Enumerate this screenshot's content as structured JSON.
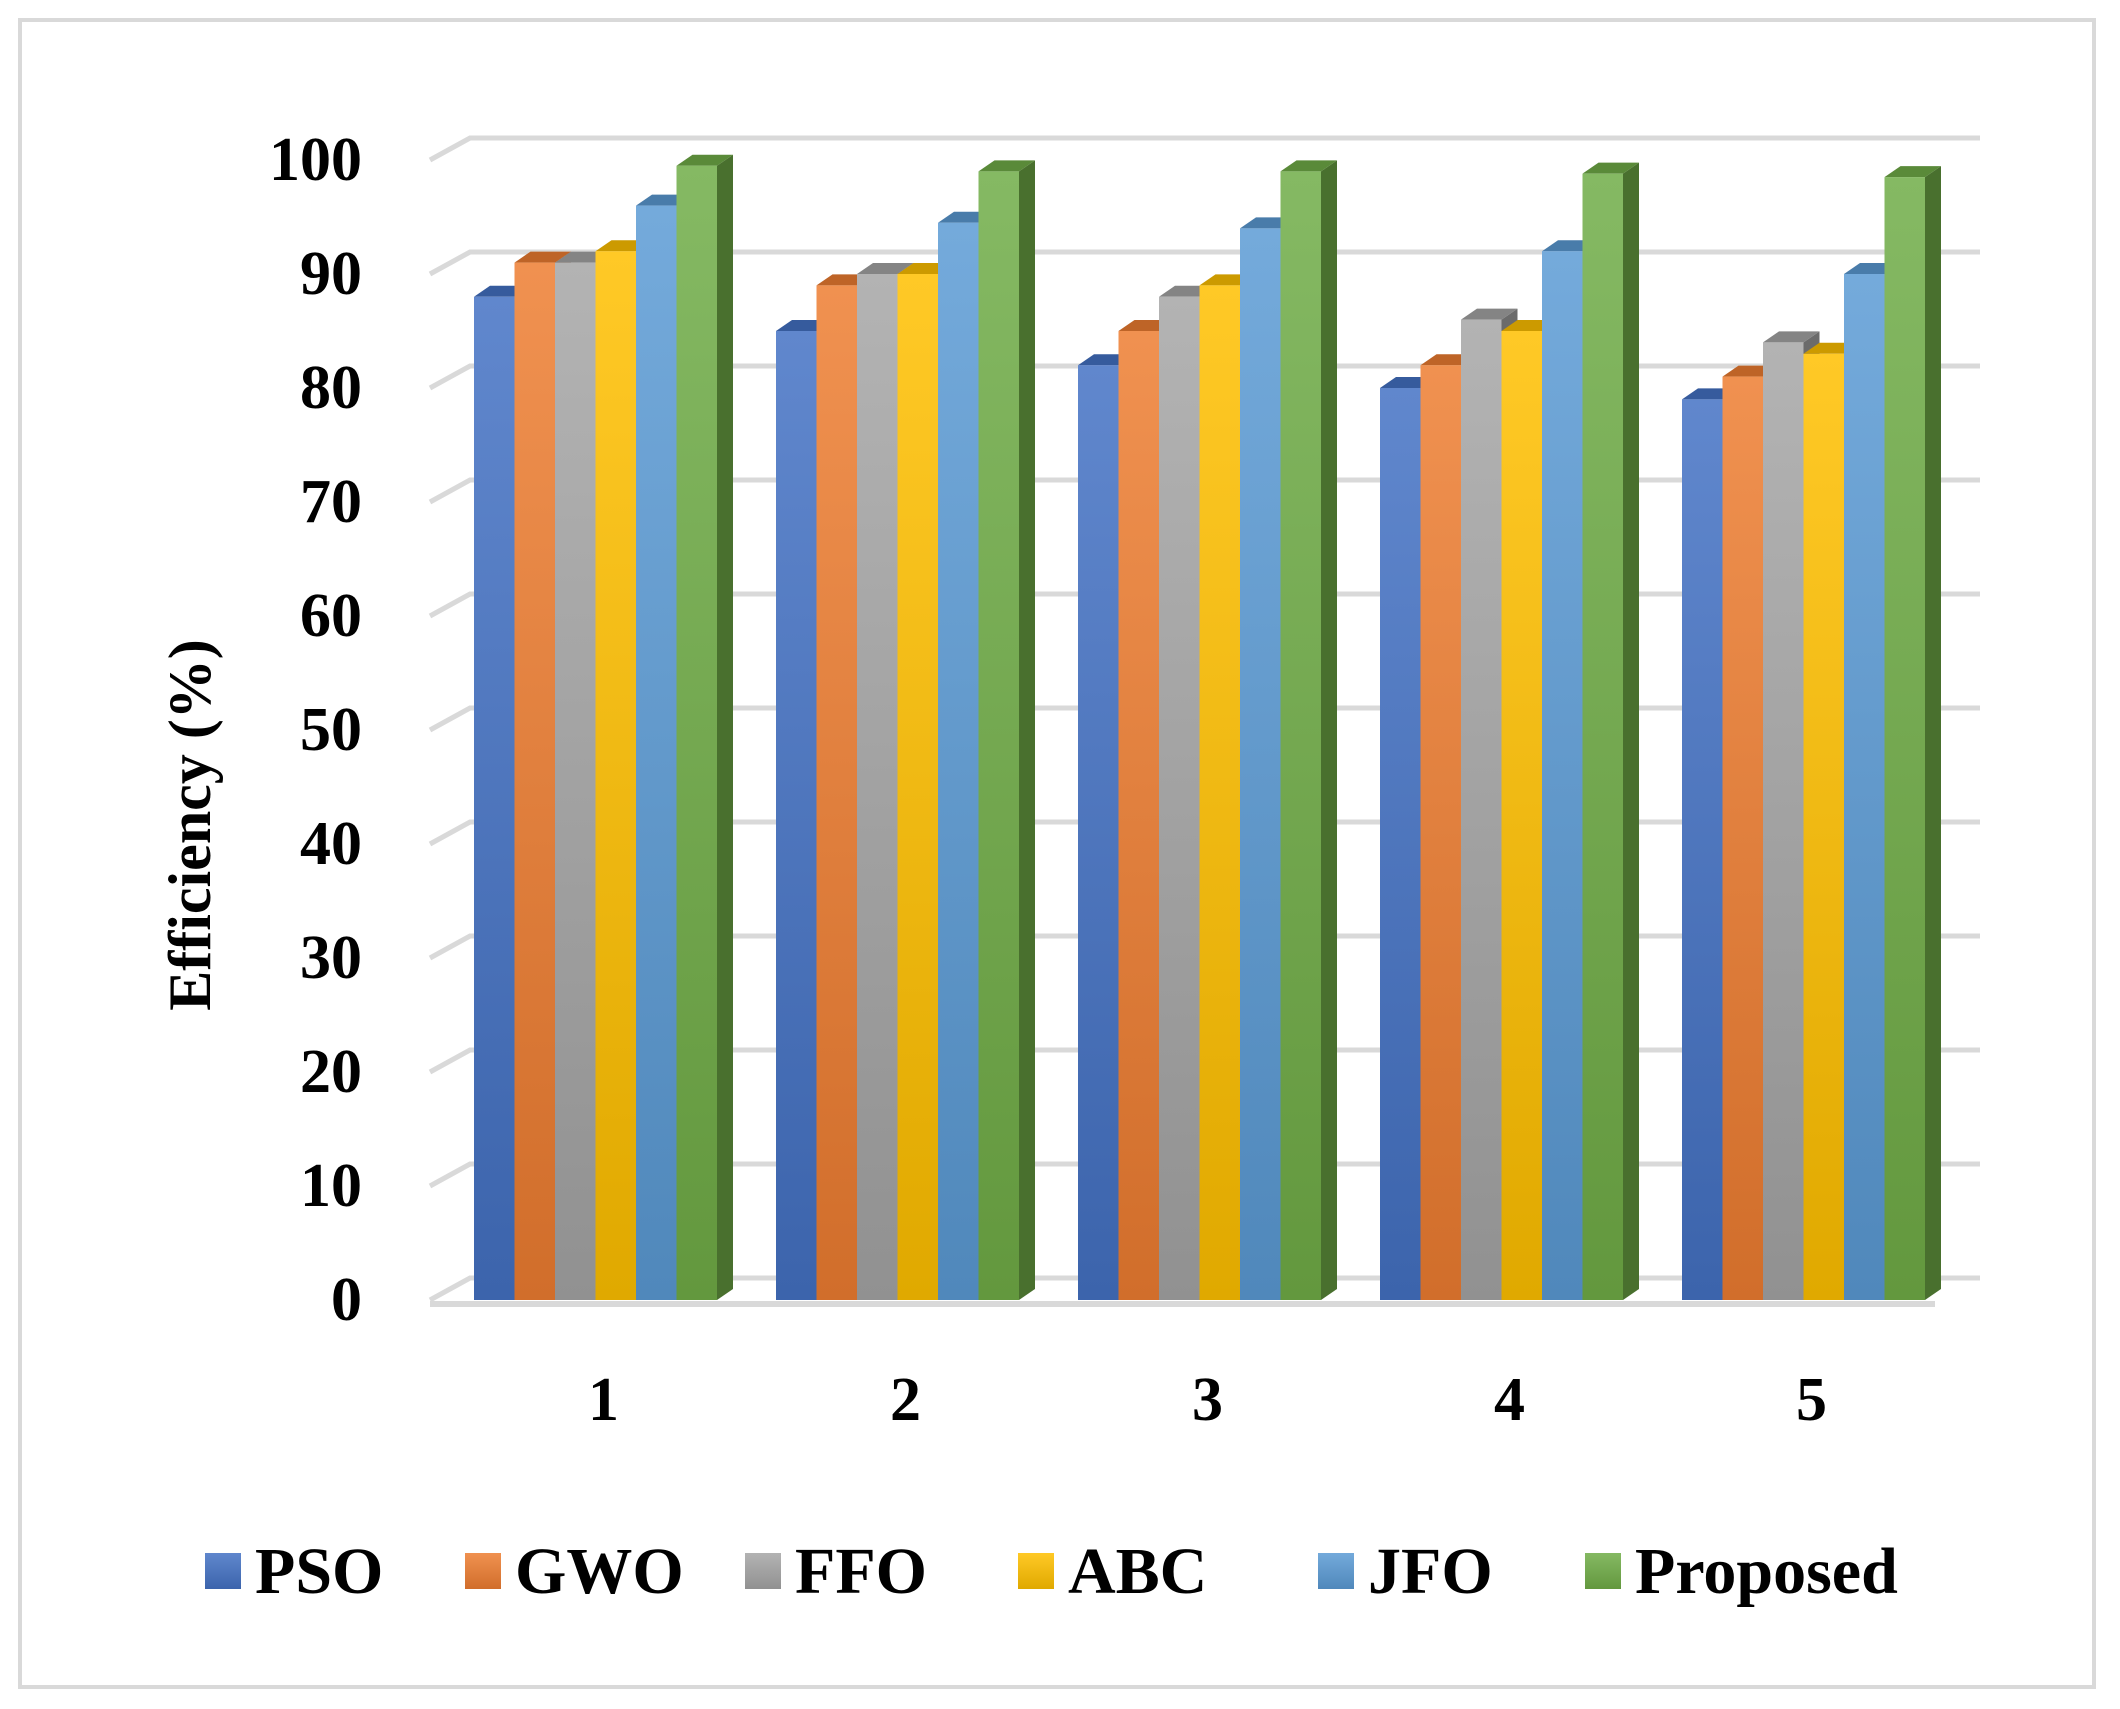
{
  "chart_data": {
    "type": "bar",
    "title": "",
    "xlabel": "",
    "ylabel": "Efficiency (%)",
    "ylim": [
      0,
      100
    ],
    "yticks": [
      0,
      10,
      20,
      30,
      40,
      50,
      60,
      70,
      80,
      90,
      100
    ],
    "categories": [
      "1",
      "2",
      "3",
      "4",
      "5"
    ],
    "series": [
      {
        "name": "PSO",
        "color": "#4472c4",
        "values": [
          88,
          85,
          82,
          80,
          79
        ]
      },
      {
        "name": "GWO",
        "color": "#ed7d31",
        "values": [
          91,
          89,
          85,
          82,
          81
        ]
      },
      {
        "name": "FFO",
        "color": "#a5a5a5",
        "values": [
          91,
          90,
          88,
          86,
          84
        ]
      },
      {
        "name": "ABC",
        "color": "#ffc000",
        "values": [
          92,
          90,
          89,
          85,
          83
        ]
      },
      {
        "name": "JFO",
        "color": "#5b9bd5",
        "values": [
          96,
          94.5,
          94,
          92,
          90
        ]
      },
      {
        "name": "Proposed",
        "color": "#70ad47",
        "values": [
          99.5,
          99,
          99,
          98.8,
          98.5
        ]
      }
    ],
    "grid": true,
    "legend_position": "bottom"
  }
}
